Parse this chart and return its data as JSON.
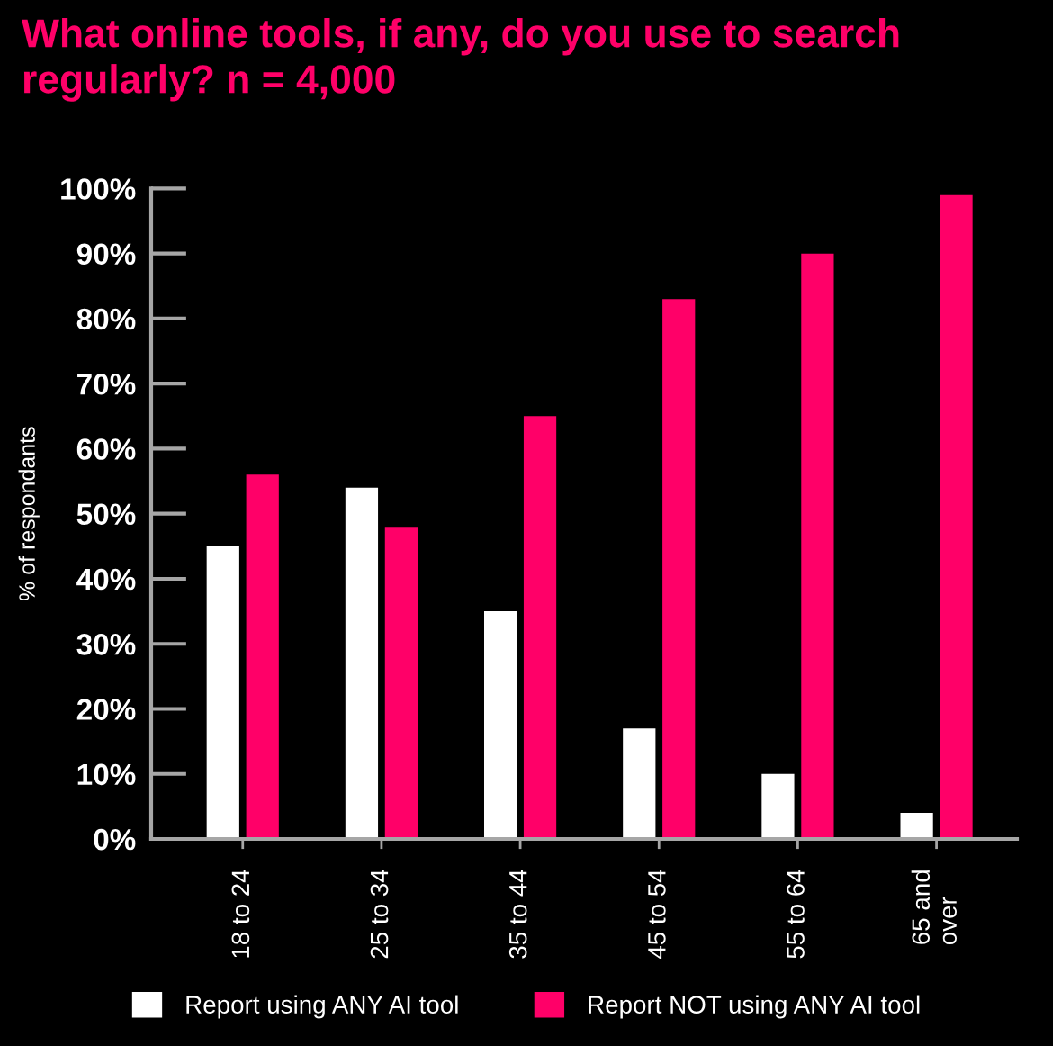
{
  "chart_data": {
    "type": "bar",
    "title": "What online tools, if any, do you use to search regularly? n = 4,000",
    "ylabel": "% of respondants",
    "categories": [
      "18 to 24",
      "25 to 34",
      "35 to 44",
      "45 to 54",
      "55 to 64",
      "65 and\nover"
    ],
    "series": [
      {
        "name": "Report using ANY AI tool",
        "color": "#ffffff",
        "values": [
          45,
          54,
          35,
          17,
          10,
          4
        ]
      },
      {
        "name": "Report NOT using ANY AI tool",
        "color": "#ff0068",
        "values": [
          56,
          48,
          65,
          83,
          90,
          99
        ]
      }
    ],
    "ylim": [
      0,
      100
    ],
    "yticks": [
      {
        "value": 0,
        "label": "0%"
      },
      {
        "value": 10,
        "label": "10%"
      },
      {
        "value": 20,
        "label": "20%"
      },
      {
        "value": 30,
        "label": "30%"
      },
      {
        "value": 40,
        "label": "40%"
      },
      {
        "value": 50,
        "label": "50%"
      },
      {
        "value": 60,
        "label": "60%"
      },
      {
        "value": 70,
        "label": "70%"
      },
      {
        "value": 80,
        "label": "80%"
      },
      {
        "value": 90,
        "label": "90%"
      },
      {
        "value": 100,
        "label": "100%"
      }
    ],
    "grid": false,
    "legend": "bottom"
  }
}
